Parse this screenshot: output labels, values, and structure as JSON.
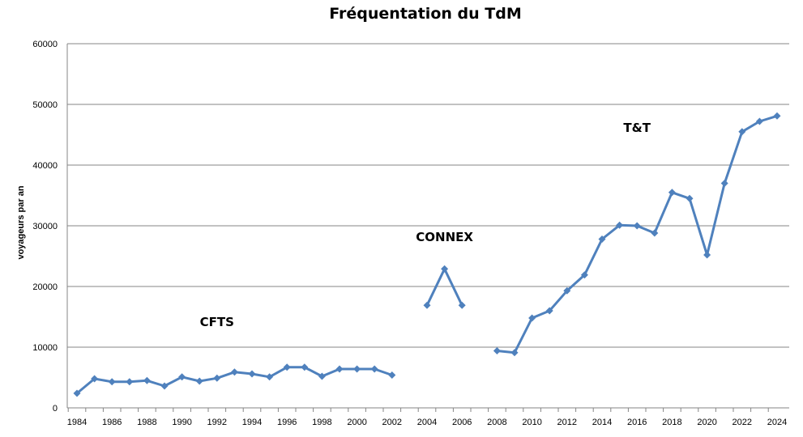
{
  "chart_data": {
    "type": "line",
    "title": "Fréquentation du TdM",
    "xlabel": "",
    "ylabel": "voyageurs par an",
    "ylim": [
      0,
      60000
    ],
    "yticks": [
      0,
      10000,
      20000,
      30000,
      40000,
      50000,
      60000
    ],
    "xlim": [
      1984,
      2024
    ],
    "xticks": [
      1984,
      1986,
      1988,
      1990,
      1992,
      1994,
      1996,
      1998,
      2000,
      2002,
      2004,
      2006,
      2008,
      2010,
      2012,
      2014,
      2016,
      2018,
      2020,
      2022,
      2024
    ],
    "grid": true,
    "line_color": "#4f81bd",
    "segments": [
      {
        "x": [
          1984,
          1985,
          1986,
          1987,
          1988,
          1989,
          1990,
          1991,
          1992,
          1993,
          1994,
          1995,
          1996,
          1997,
          1998,
          1999,
          2000,
          2001,
          2002
        ],
        "values": [
          2400,
          4800,
          4300,
          4300,
          4500,
          3600,
          5100,
          4400,
          4900,
          5900,
          5600,
          5100,
          6700,
          6700,
          5200,
          6400,
          6400,
          6400,
          5400
        ]
      },
      {
        "x": [
          2004,
          2005,
          2006
        ],
        "values": [
          16900,
          22900,
          16900
        ]
      },
      {
        "x": [
          2008,
          2009,
          2010,
          2011,
          2012,
          2013,
          2014,
          2015,
          2016,
          2017,
          2018,
          2019,
          2020,
          2021,
          2022,
          2023,
          2024
        ],
        "values": [
          9400,
          9100,
          14800,
          16000,
          19300,
          21900,
          27800,
          30100,
          30000,
          28800,
          35500,
          34500,
          25200,
          37000,
          45500,
          47200,
          48100
        ]
      }
    ],
    "annotations": [
      {
        "text": "CFTS",
        "x": 1992,
        "y": 13500
      },
      {
        "text": "CONNEX",
        "x": 2005,
        "y": 27500
      },
      {
        "text": "T&T",
        "x": 2016,
        "y": 45500
      }
    ]
  }
}
